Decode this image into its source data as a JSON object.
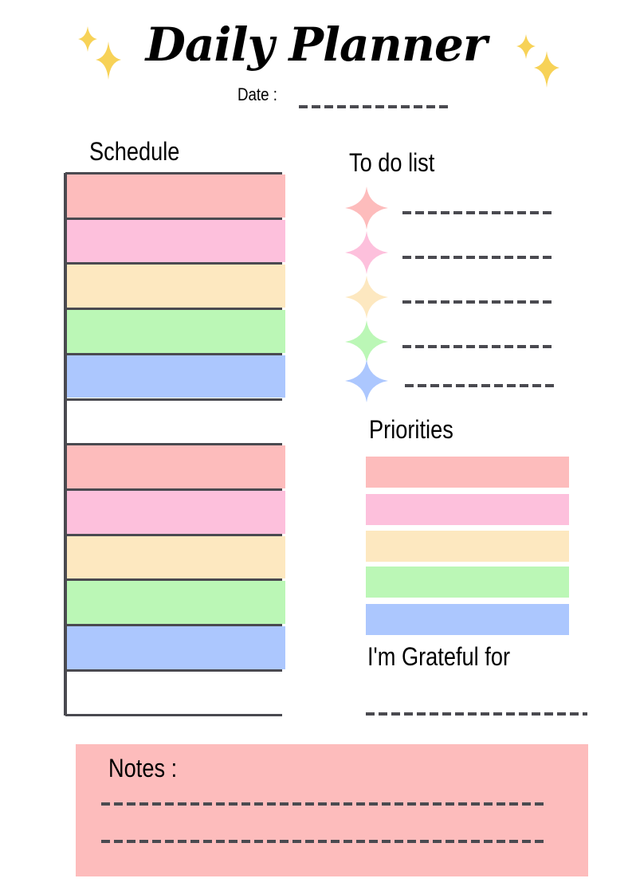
{
  "title": "Daily Planner",
  "date": {
    "label": "Date :"
  },
  "schedule": {
    "heading": "Schedule",
    "rows": [
      "#fdbcbc",
      "#fdc0dc",
      "#fde8c0",
      "#bbf7b6",
      "#acc7fe",
      "#ffffff",
      "#fdbcbc",
      "#fdc0dc",
      "#fde8c0",
      "#bbf7b6",
      "#acc7fe",
      "#ffffff"
    ]
  },
  "todo": {
    "heading": "To do list",
    "star_icon": "four-point-star-icon",
    "items": [
      "#fdbcbc",
      "#fdc0dc",
      "#fde8c0",
      "#bbf7b6",
      "#acc7fe"
    ]
  },
  "priorities": {
    "heading": "Priorities",
    "bars": [
      "#fdbcbc",
      "#fdc0dc",
      "#fde8c0",
      "#bbf7b6",
      "#acc7fe"
    ]
  },
  "grateful": {
    "heading": "I'm Grateful for"
  },
  "notes": {
    "heading": "Notes :",
    "background": "#fdbcbc"
  },
  "colors": {
    "line": "#4a4a50",
    "sparkle": "#f7d257"
  }
}
